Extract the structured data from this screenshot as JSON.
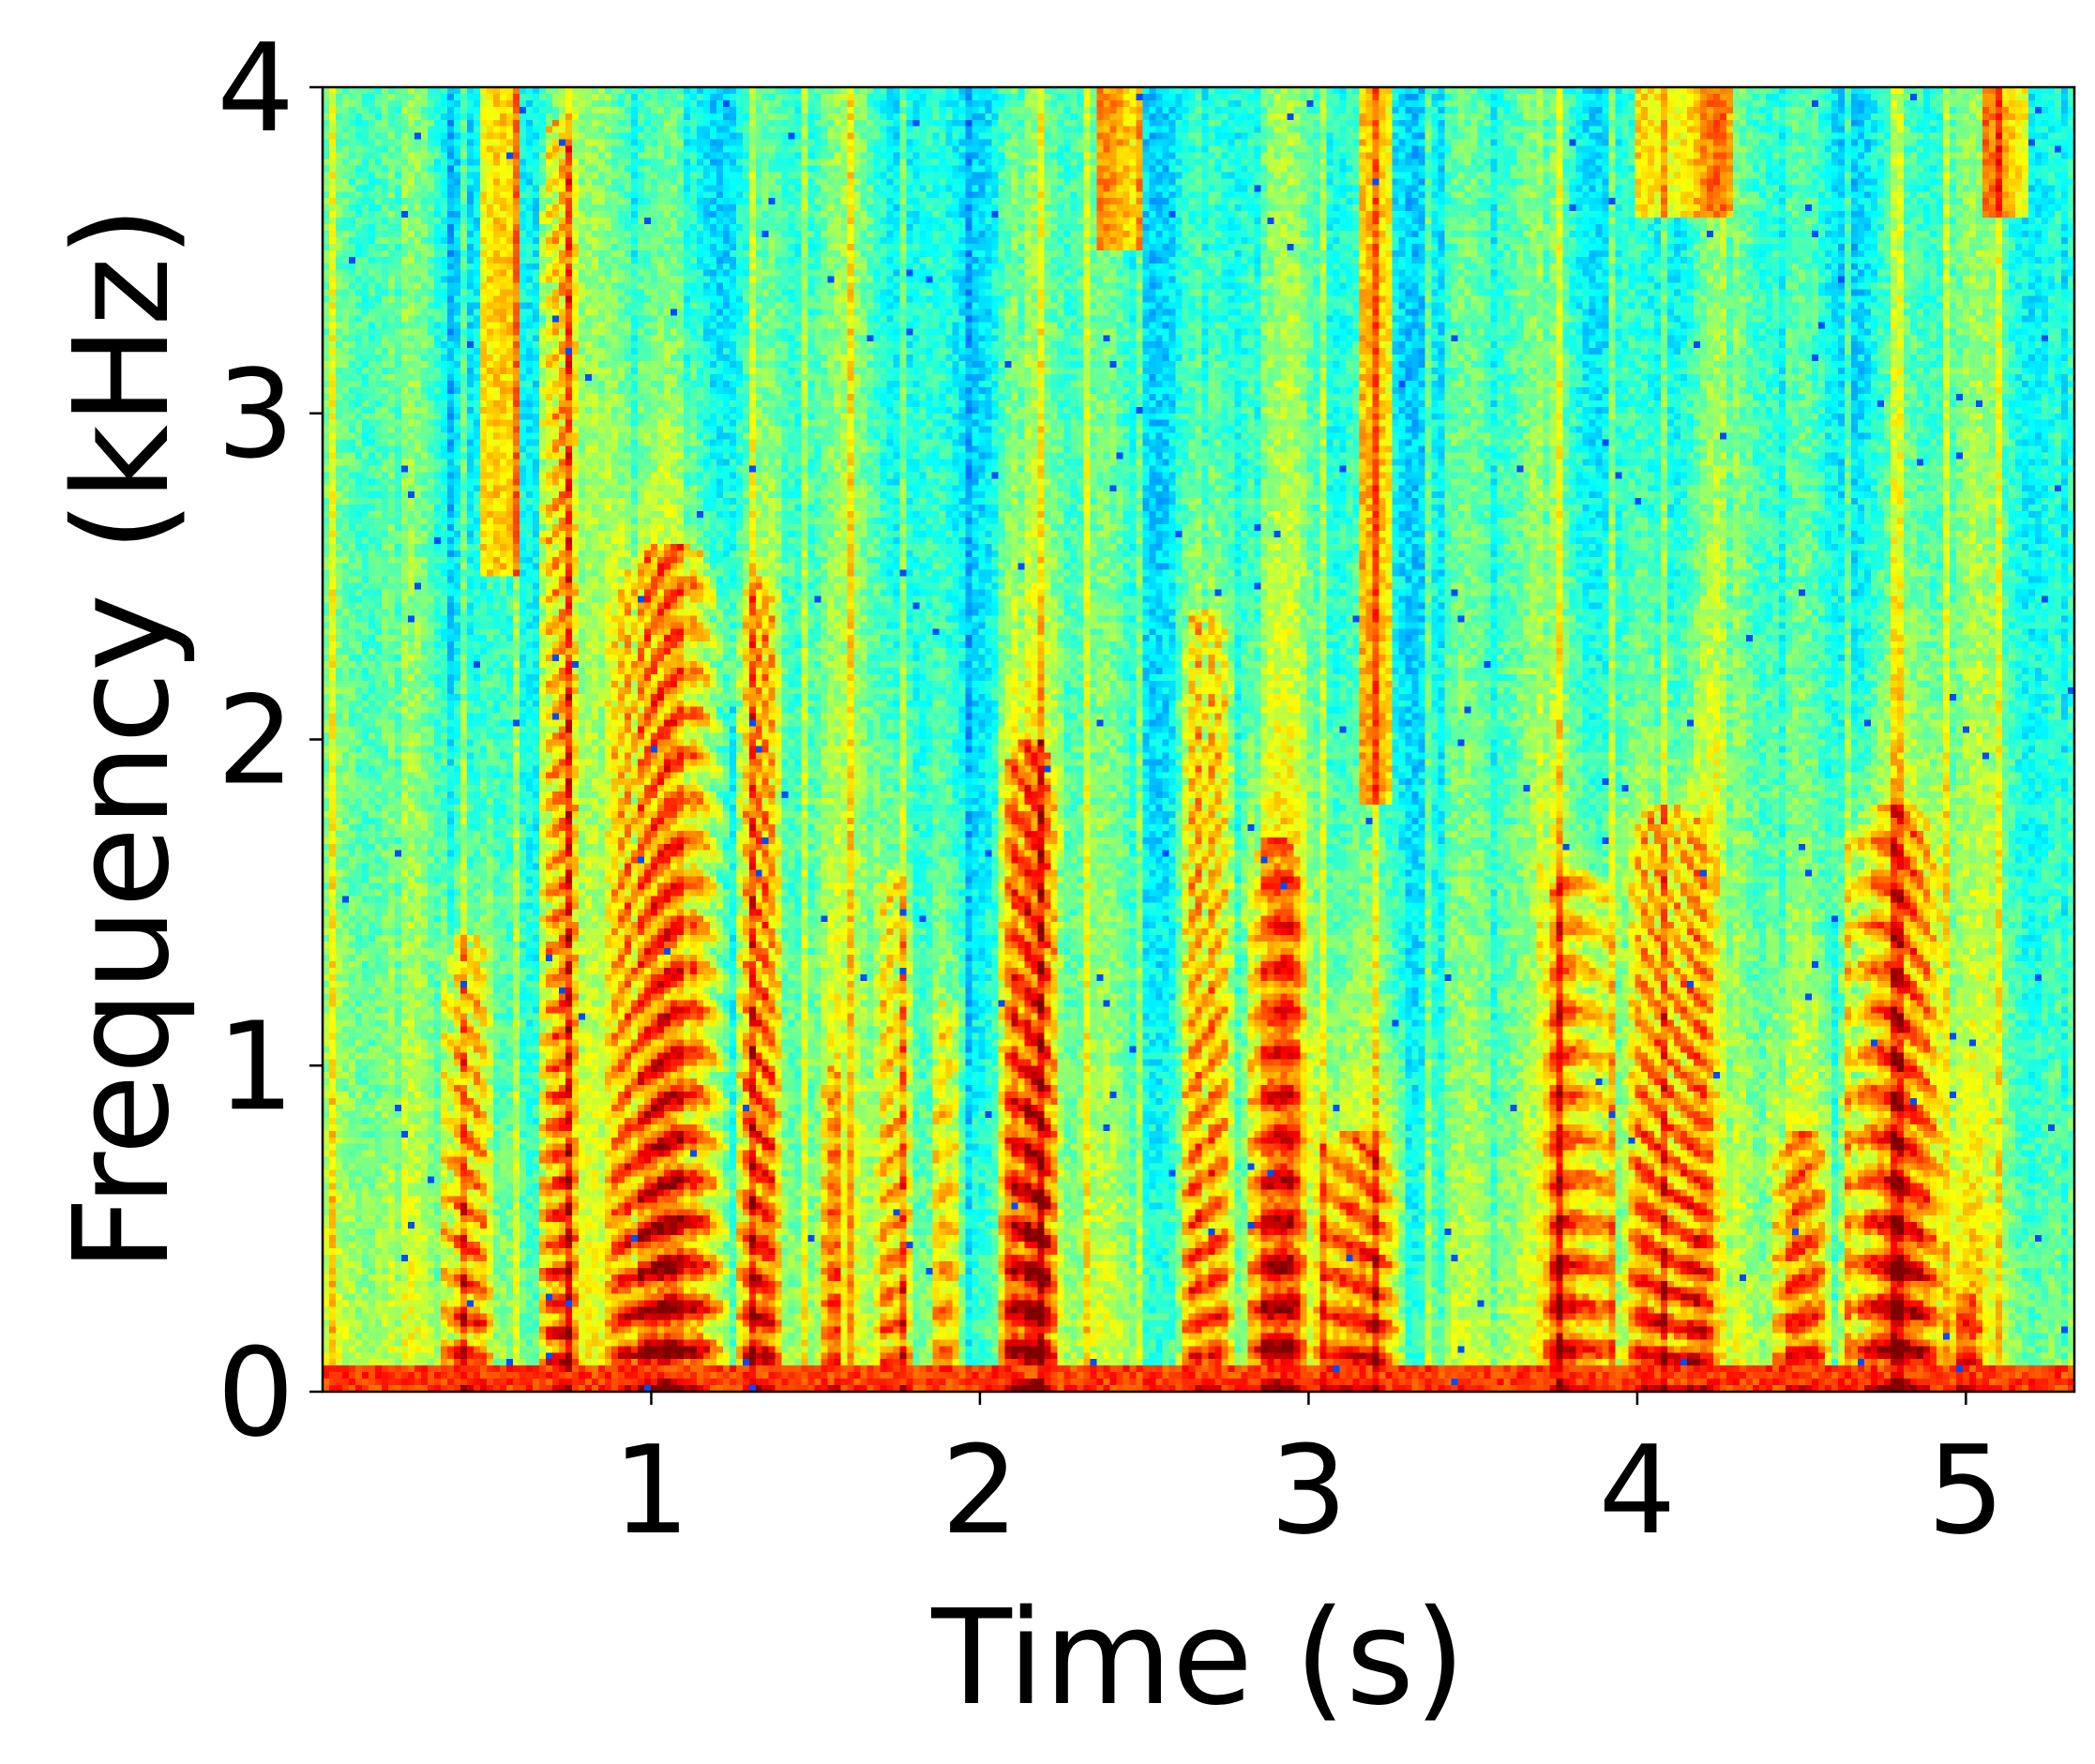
{
  "chart_data": {
    "type": "heatmap",
    "title": "",
    "xlabel": "Time (s)",
    "ylabel": "Frequency (kHz)",
    "xlim": [
      0,
      5.33
    ],
    "ylim": [
      0,
      4
    ],
    "xticks": [
      1,
      2,
      3,
      4,
      5
    ],
    "yticks": [
      0,
      1,
      2,
      3,
      4
    ],
    "xtick_labels": [
      "1",
      "2",
      "3",
      "4",
      "5"
    ],
    "ytick_labels": [
      "0",
      "1",
      "2",
      "3",
      "4"
    ],
    "colormap": "jet",
    "colorbar": false,
    "grid": false,
    "background_color": "#ffffff",
    "colors": {
      "low": "#33ddcc",
      "mid": "#eeff22",
      "high": "#ff2200",
      "peak": "#cc0000"
    },
    "voiced_segments": [
      {
        "start": 0.35,
        "end": 0.52,
        "strength": 0.9,
        "f_max": 1.4
      },
      {
        "start": 0.65,
        "end": 0.78,
        "strength": 0.85,
        "f_max": 3.9
      },
      {
        "start": 0.85,
        "end": 1.25,
        "strength": 1.0,
        "f_max": 2.6
      },
      {
        "start": 1.25,
        "end": 1.4,
        "strength": 0.85,
        "f_max": 2.5
      },
      {
        "start": 1.52,
        "end": 1.58,
        "strength": 0.6,
        "f_max": 1.0
      },
      {
        "start": 1.68,
        "end": 1.8,
        "strength": 0.75,
        "f_max": 1.6
      },
      {
        "start": 1.85,
        "end": 1.95,
        "strength": 0.6,
        "f_max": 1.2
      },
      {
        "start": 2.05,
        "end": 2.25,
        "strength": 0.95,
        "f_max": 2.0
      },
      {
        "start": 2.6,
        "end": 2.78,
        "strength": 0.8,
        "f_max": 2.4
      },
      {
        "start": 2.8,
        "end": 3.0,
        "strength": 0.85,
        "f_max": 1.7
      },
      {
        "start": 3.0,
        "end": 3.3,
        "strength": 0.85,
        "f_max": 0.8
      },
      {
        "start": 3.7,
        "end": 3.95,
        "strength": 0.85,
        "f_max": 1.6
      },
      {
        "start": 3.95,
        "end": 4.25,
        "strength": 0.95,
        "f_max": 1.8
      },
      {
        "start": 4.4,
        "end": 4.6,
        "strength": 0.75,
        "f_max": 0.8
      },
      {
        "start": 4.6,
        "end": 4.95,
        "strength": 0.95,
        "f_max": 1.8
      },
      {
        "start": 4.95,
        "end": 5.05,
        "strength": 0.7,
        "f_max": 0.3
      }
    ],
    "fricative_segments": [
      {
        "start": 0.48,
        "end": 0.6,
        "f_min": 2.5,
        "strength": 0.7
      },
      {
        "start": 2.35,
        "end": 2.5,
        "f_min": 3.5,
        "strength": 0.7
      },
      {
        "start": 3.15,
        "end": 3.25,
        "f_min": 1.8,
        "strength": 0.7
      },
      {
        "start": 4.0,
        "end": 4.3,
        "f_min": 3.6,
        "strength": 0.7
      },
      {
        "start": 5.05,
        "end": 5.2,
        "f_min": 3.6,
        "strength": 0.7
      }
    ]
  }
}
